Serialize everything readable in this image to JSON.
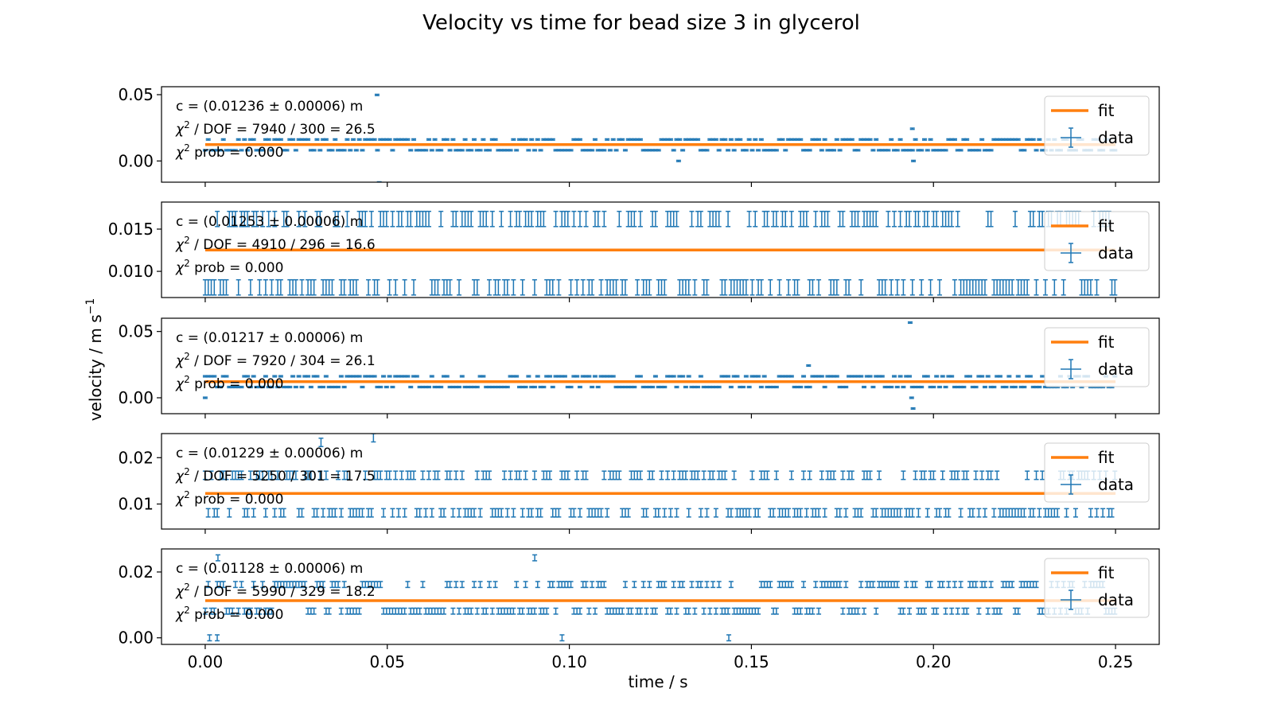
{
  "chart_data": {
    "type": "scatter",
    "title": "Velocity vs time for bead size 3 in glycerol",
    "xlabel": "time / s",
    "ylabel": "velocity / m s",
    "ylabel_superscript": "−1",
    "xlim": [
      -0.012,
      0.262
    ],
    "x_ticks": [
      0.0,
      0.05,
      0.1,
      0.15,
      0.2,
      0.25
    ],
    "x_tick_labels": [
      "0.00",
      "0.05",
      "0.10",
      "0.15",
      "0.20",
      "0.25"
    ],
    "grid": false,
    "legend_placement": "top-right",
    "colors": {
      "data": "#1f77b4",
      "fit": "#ff7f0e"
    },
    "sample_interval_s": 0.00083,
    "panels": [
      {
        "ylim": [
          -0.016,
          0.056
        ],
        "yticks": [
          0.0,
          0.05
        ],
        "ytick_labels": [
          "0.00",
          "0.05"
        ],
        "fit_value": 0.01236,
        "err": 0.0005,
        "levels": [
          0.0162,
          0.0081
        ],
        "outliers": [
          {
            "x": 0.0472,
            "y": 0.0498
          },
          {
            "x": 0.0478,
            "y": -0.0162
          },
          {
            "x": 0.13,
            "y": 0.0
          },
          {
            "x": 0.1942,
            "y": 0.0243
          },
          {
            "x": 0.1945,
            "y": 0.0
          }
        ],
        "annotations": {
          "c": "c = (0.01236 ± 0.00006) m",
          "chi_dof": "/ DOF = 7940 / 300 = 26.5",
          "chi_prob": "prob = 0.000"
        },
        "legend": {
          "fit": "fit",
          "data": "data"
        }
      },
      {
        "ylim": [
          0.0069,
          0.0182
        ],
        "yticks": [
          0.01,
          0.015
        ],
        "ytick_labels": [
          "0.010",
          "0.015"
        ],
        "fit_value": 0.01253,
        "err": 0.0009,
        "levels": [
          0.0162,
          0.0081
        ],
        "outliers": [],
        "annotations": {
          "c": "c = (0.01253 ± 0.00006) m",
          "chi_dof": "/ DOF = 4910 / 296 = 16.6",
          "chi_prob": "prob = 0.000"
        },
        "legend": {
          "fit": "fit",
          "data": "data"
        }
      },
      {
        "ylim": [
          -0.012,
          0.06
        ],
        "yticks": [
          0.0,
          0.05
        ],
        "ytick_labels": [
          "0.00",
          "0.05"
        ],
        "fit_value": 0.01217,
        "err": 0.0005,
        "levels": [
          0.0162,
          0.0081
        ],
        "outliers": [
          {
            "x": 0.0,
            "y": 0.0
          },
          {
            "x": 0.1657,
            "y": 0.0243
          },
          {
            "x": 0.1936,
            "y": 0.0567
          },
          {
            "x": 0.194,
            "y": 0.0
          },
          {
            "x": 0.1944,
            "y": -0.0081
          }
        ],
        "annotations": {
          "c": "c = (0.01217 ± 0.00006) m",
          "chi_dof": "/ DOF = 7920 / 304 = 26.1",
          "chi_prob": "prob = 0.000"
        },
        "legend": {
          "fit": "fit",
          "data": "data"
        }
      },
      {
        "ylim": [
          0.0046,
          0.0252
        ],
        "yticks": [
          0.01,
          0.02
        ],
        "ytick_labels": [
          "0.01",
          "0.02"
        ],
        "fit_value": 0.01229,
        "err": 0.0009,
        "levels": [
          0.0162,
          0.0081
        ],
        "outliers": [
          {
            "x": 0.0318,
            "y": 0.0233
          },
          {
            "x": 0.0462,
            "y": 0.0243
          }
        ],
        "annotations": {
          "c": "c = (0.01229 ± 0.00006) m",
          "chi_dof": "/ DOF = 5250 / 301 = 17.5",
          "chi_prob": "prob = 0.000"
        },
        "legend": {
          "fit": "fit",
          "data": "data"
        }
      },
      {
        "ylim": [
          -0.002,
          0.027
        ],
        "yticks": [
          0.0,
          0.02
        ],
        "ytick_labels": [
          "0.00",
          "0.02"
        ],
        "fit_value": 0.01128,
        "err": 0.0009,
        "levels": [
          0.0162,
          0.0081
        ],
        "outliers": [
          {
            "x": 0.0012,
            "y": 0.0
          },
          {
            "x": 0.0033,
            "y": 0.0
          },
          {
            "x": 0.0035,
            "y": 0.0243
          },
          {
            "x": 0.0905,
            "y": 0.0243
          },
          {
            "x": 0.098,
            "y": 0.0
          },
          {
            "x": 0.1438,
            "y": 0.0
          }
        ],
        "annotations": {
          "c": "c = (0.01128 ± 0.00006) m",
          "chi_dof": "/ DOF = 5990 / 329 = 18.2",
          "chi_prob": "prob = 0.000"
        },
        "legend": {
          "fit": "fit",
          "data": "data"
        }
      }
    ]
  }
}
